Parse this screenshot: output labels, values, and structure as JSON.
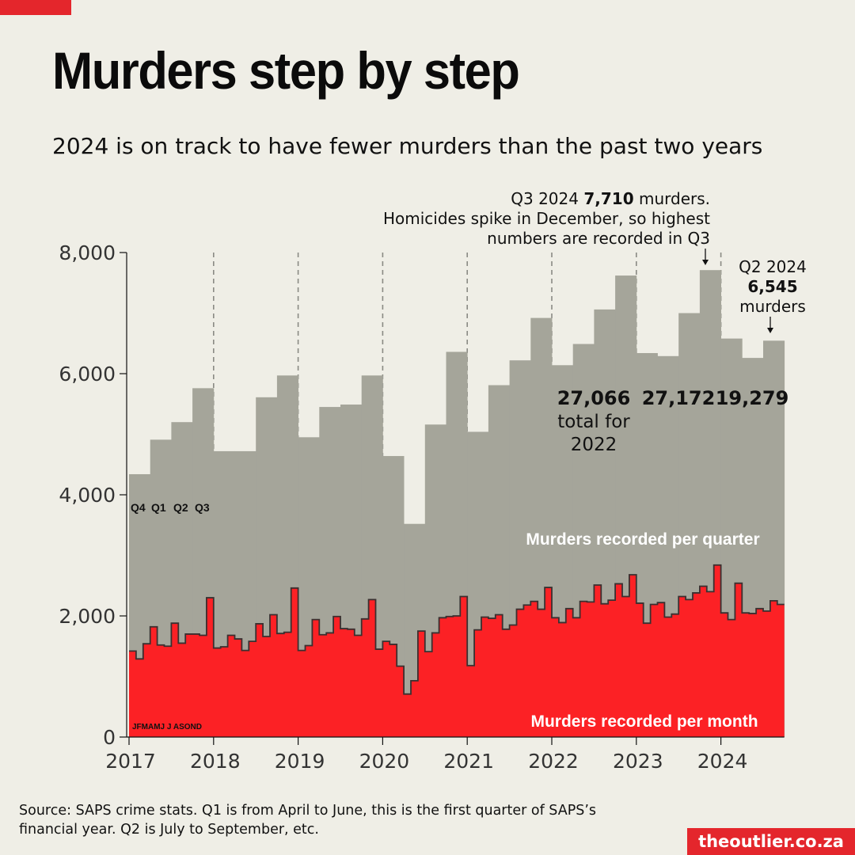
{
  "header": {
    "title": "Murders step by step",
    "subtitle": "2024 is on track to have fewer murders than the past two years"
  },
  "footer": {
    "source": "Source: SAPS crime stats. Q1 is from April to June, this is the first quarter of SAPS’s financial year. Q2 is July to September, etc.",
    "brand": "theoutlier.co.za"
  },
  "colors": {
    "background": "#efeee6",
    "quarter_fill": "#a5a59a",
    "month_fill": "#fc2125",
    "accent": "#e4262c"
  },
  "chart_data": {
    "type": "area",
    "y_ticks": [
      "8,000",
      "6,000",
      "4,000",
      "2,000",
      "0"
    ],
    "y_tick_values": [
      8000,
      6000,
      4000,
      2000,
      0
    ],
    "ylim": [
      0,
      8000
    ],
    "x_ticks": [
      "2017",
      "2018",
      "2019",
      "2020",
      "2021",
      "2022",
      "2023",
      "2024"
    ],
    "grid": "dashed vertical line at each year start",
    "series": [
      {
        "name": "Murders recorded per quarter",
        "label_color": "#ffffff",
        "quarter_labels": [
          "Q4",
          "Q1",
          "Q2",
          "Q3"
        ],
        "values": [
          4340,
          4910,
          5200,
          5760,
          4720,
          4720,
          5610,
          5970,
          4950,
          5450,
          5490,
          5970,
          4640,
          3520,
          5160,
          6360,
          5040,
          5810,
          6220,
          6920,
          6140,
          6490,
          7060,
          7620,
          6340,
          6290,
          7000,
          7710,
          6580,
          6260,
          6545
        ]
      },
      {
        "name": "Murders recorded per month",
        "label_color": "#ffffff",
        "month_labels": "JFMAMJ J ASOND",
        "values": [
          1420,
          1290,
          1540,
          1820,
          1520,
          1500,
          1880,
          1550,
          1700,
          1700,
          1680,
          2300,
          1470,
          1490,
          1680,
          1620,
          1430,
          1580,
          1870,
          1660,
          2020,
          1710,
          1730,
          2460,
          1430,
          1510,
          1940,
          1690,
          1720,
          1990,
          1790,
          1780,
          1680,
          1950,
          2270,
          1450,
          1580,
          1530,
          1170,
          710,
          930,
          1750,
          1410,
          1720,
          1970,
          1990,
          2000,
          2320,
          1180,
          1770,
          1980,
          1960,
          2020,
          1780,
          1850,
          2110,
          2180,
          2240,
          2110,
          2470,
          1970,
          1890,
          2120,
          1970,
          2240,
          2230,
          2510,
          2200,
          2260,
          2530,
          2320,
          2680,
          2210,
          1880,
          2190,
          2220,
          1980,
          2030,
          2320,
          2270,
          2380,
          2490,
          2400,
          2840,
          2050,
          1940,
          2540,
          2050,
          2040,
          2120,
          2080,
          2250,
          2190
        ]
      }
    ],
    "annotations": {
      "q3_2024_prefix": "Q3 2024 ",
      "q3_2024_value": "7,710",
      "q3_2024_suffix": " murders.",
      "q3_line2": "Homicides spike in December, so highest",
      "q3_line3": "numbers are recorded in Q3",
      "q2_line1": "Q2 2024",
      "q2_value": "6,545",
      "q2_line3": "murders",
      "total_2022_value": "27,066",
      "total_2022_line2": "total for",
      "total_2022_line3": "2022",
      "total_2023_value": "27,172",
      "total_2024_value": "19,279"
    }
  }
}
